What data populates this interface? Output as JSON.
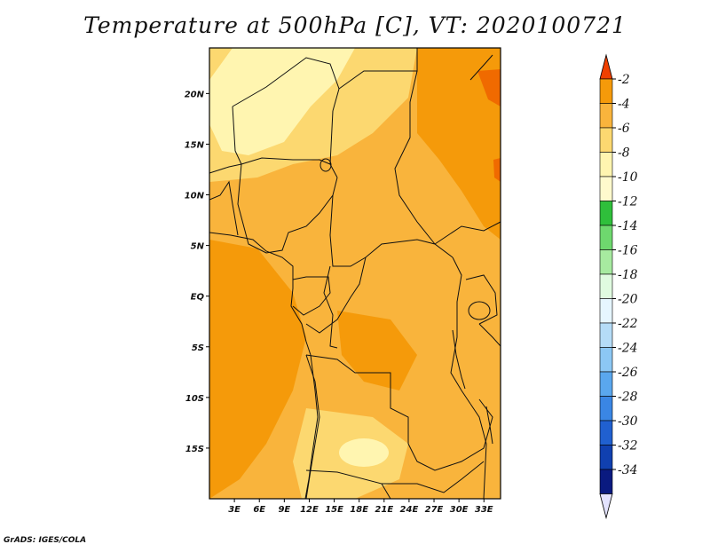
{
  "title": "Temperature at 500hPa [C], VT: 2020100721",
  "credit": "GrADS: IGES/COLA",
  "map": {
    "lon_range": [
      0,
      35
    ],
    "lat_range": [
      -20,
      24.5
    ],
    "lon_ticks": [
      {
        "value": 3,
        "label": "3E"
      },
      {
        "value": 6,
        "label": "6E"
      },
      {
        "value": 9,
        "label": "9E"
      },
      {
        "value": 12,
        "label": "12E"
      },
      {
        "value": 15,
        "label": "15E"
      },
      {
        "value": 18,
        "label": "18E"
      },
      {
        "value": 21,
        "label": "21E"
      },
      {
        "value": 24,
        "label": "24E"
      },
      {
        "value": 27,
        "label": "27E"
      },
      {
        "value": 30,
        "label": "30E"
      },
      {
        "value": 33,
        "label": "33E"
      }
    ],
    "lat_ticks": [
      {
        "value": 20,
        "label": "20N"
      },
      {
        "value": 15,
        "label": "15N"
      },
      {
        "value": 10,
        "label": "10N"
      },
      {
        "value": 5,
        "label": "5N"
      },
      {
        "value": 0,
        "label": "EQ"
      },
      {
        "value": -5,
        "label": "5S"
      },
      {
        "value": -10,
        "label": "10S"
      },
      {
        "value": -15,
        "label": "15S"
      }
    ],
    "fill_colors": {
      "-10_-8": "#fff5b0",
      "-8_-6": "#fcd870",
      "-6_-4": "#f9b43c",
      "-4_-2": "#f59a0a",
      "-2_up": "#f06a00"
    }
  },
  "colorbar": {
    "levels": [
      "-2",
      "-4",
      "-6",
      "-8",
      "-10",
      "-12",
      "-14",
      "-16",
      "-18",
      "-20",
      "-22",
      "-24",
      "-26",
      "-28",
      "-30",
      "-32",
      "-34"
    ],
    "colors": [
      "#f06a00",
      "#f59a0a",
      "#f9b43c",
      "#fcd870",
      "#fff5b0",
      "#fffacd",
      "#2fbf3b",
      "#6ed86e",
      "#a7eaa0",
      "#e0fbe0",
      "#e6f6ff",
      "#b5dcf7",
      "#8cc7f4",
      "#5aa7ee",
      "#3a86e4",
      "#2060d0",
      "#1040b0",
      "#0a1a80"
    ],
    "top_arrow_color": "#f04000",
    "bottom_arrow_color": "#e3e3ff"
  }
}
